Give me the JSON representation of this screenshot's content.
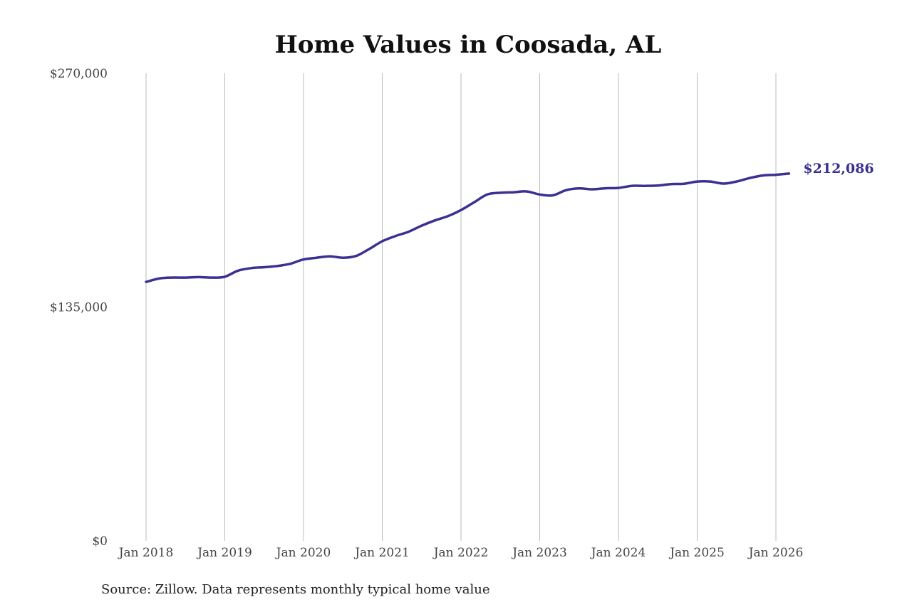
{
  "chart_data": {
    "type": "line",
    "title": "Home Values in Coosada, AL",
    "source": "Source: Zillow. Data represents monthly typical home value",
    "ylim": [
      0,
      270000
    ],
    "y_ticks": [
      {
        "value": 0,
        "label": "$0"
      },
      {
        "value": 135000,
        "label": "$135,000"
      },
      {
        "value": 270000,
        "label": "$270,000"
      }
    ],
    "x_ticks": [
      {
        "value": "2018-01",
        "label": "Jan 2018"
      },
      {
        "value": "2019-01",
        "label": "Jan 2019"
      },
      {
        "value": "2020-01",
        "label": "Jan 2020"
      },
      {
        "value": "2021-01",
        "label": "Jan 2021"
      },
      {
        "value": "2022-01",
        "label": "Jan 2022"
      },
      {
        "value": "2023-01",
        "label": "Jan 2023"
      },
      {
        "value": "2024-01",
        "label": "Jan 2024"
      },
      {
        "value": "2025-01",
        "label": "Jan 2025"
      },
      {
        "value": "2026-01",
        "label": "Jan 2026"
      }
    ],
    "grid": {
      "vertical": true,
      "horizontal": false
    },
    "line_color": "#3b3192",
    "end_label": "$212,086",
    "series": [
      {
        "points": [
          [
            "2018-01",
            149500
          ],
          [
            "2018-03",
            151500
          ],
          [
            "2018-05",
            152000
          ],
          [
            "2018-07",
            152000
          ],
          [
            "2018-09",
            152300
          ],
          [
            "2018-11",
            152000
          ],
          [
            "2019-01",
            152500
          ],
          [
            "2019-03",
            156000
          ],
          [
            "2019-05",
            157500
          ],
          [
            "2019-07",
            158000
          ],
          [
            "2019-09",
            158700
          ],
          [
            "2019-11",
            160000
          ],
          [
            "2020-01",
            162500
          ],
          [
            "2020-03",
            163500
          ],
          [
            "2020-05",
            164300
          ],
          [
            "2020-07",
            163500
          ],
          [
            "2020-09",
            164500
          ],
          [
            "2020-11",
            168500
          ],
          [
            "2021-01",
            173000
          ],
          [
            "2021-03",
            176000
          ],
          [
            "2021-05",
            178500
          ],
          [
            "2021-07",
            182000
          ],
          [
            "2021-09",
            185000
          ],
          [
            "2021-11",
            187500
          ],
          [
            "2022-01",
            191000
          ],
          [
            "2022-03",
            195500
          ],
          [
            "2022-05",
            200000
          ],
          [
            "2022-07",
            201000
          ],
          [
            "2022-09",
            201300
          ],
          [
            "2022-11",
            201800
          ],
          [
            "2023-01",
            200000
          ],
          [
            "2023-03",
            199500
          ],
          [
            "2023-05",
            202500
          ],
          [
            "2023-07",
            203500
          ],
          [
            "2023-09",
            203000
          ],
          [
            "2023-11",
            203600
          ],
          [
            "2024-01",
            203800
          ],
          [
            "2024-03",
            205000
          ],
          [
            "2024-05",
            205000
          ],
          [
            "2024-07",
            205200
          ],
          [
            "2024-09",
            206000
          ],
          [
            "2024-11",
            206200
          ],
          [
            "2025-01",
            207500
          ],
          [
            "2025-03",
            207500
          ],
          [
            "2025-05",
            206300
          ],
          [
            "2025-07",
            207500
          ],
          [
            "2025-09",
            209500
          ],
          [
            "2025-11",
            211000
          ],
          [
            "2026-01",
            211400
          ],
          [
            "2026-03",
            212086
          ]
        ]
      }
    ]
  }
}
